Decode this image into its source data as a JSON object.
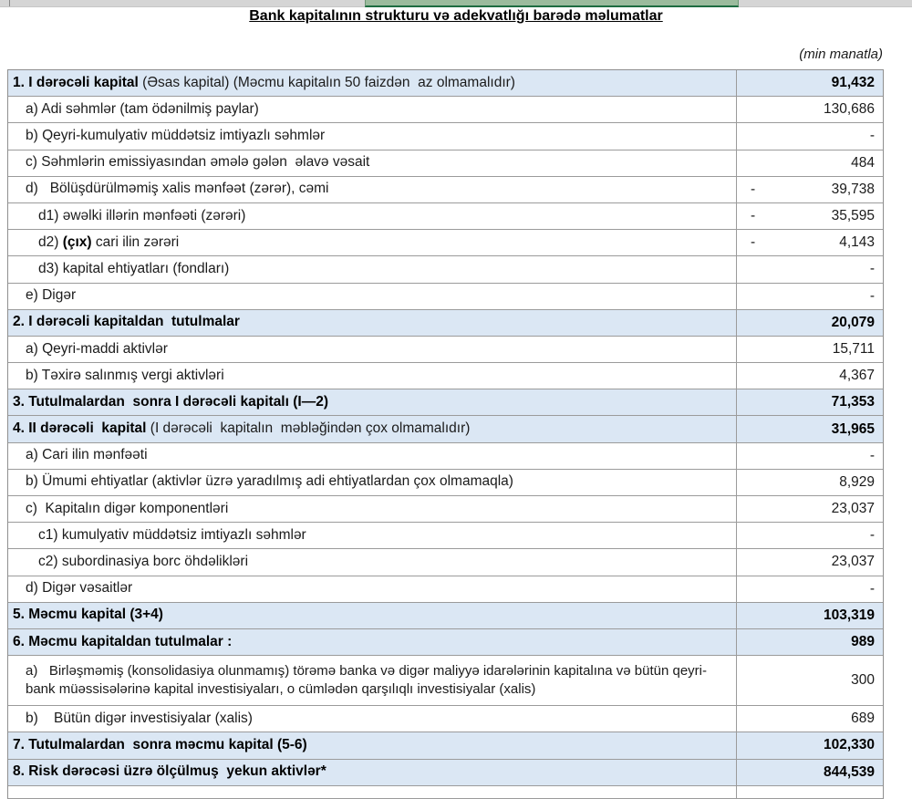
{
  "title": "Bank kapitalının strukturu və adekvatlığı barədə məlumatlar",
  "unit_note": "(min manatla)",
  "colors": {
    "section_row_bg": "#dbe7f4",
    "grid_border": "#9b9b9b",
    "excel_strip_bg": "#d5d5d5",
    "excel_selection_green_fill": "#9bbb9d",
    "excel_selection_green_border": "#1e6c41"
  },
  "table": {
    "rows": [
      {
        "level": "section",
        "bold": "1. I dərəcəli kapital",
        "post": " (Əsas kapital) (Məcmu kapitalın 50 faizdən  az olmamalıdır)",
        "value": "91,432"
      },
      {
        "level": "sub",
        "pre": "a) Adi səhmlər (tam ödənilmiş paylar)",
        "value": "130,686"
      },
      {
        "level": "sub",
        "pre": "b) Qeyri-kumulyativ müddətsiz imtiyazlı səhmlər",
        "value": "-"
      },
      {
        "level": "sub",
        "pre": "c) Səhmlərin emissiyasından əmələ gələn  əlavə vəsait",
        "value": "484"
      },
      {
        "level": "sub",
        "pre": "d)   Bölüşdürülməmiş xalis mənfəət (zərər), cəmi",
        "neg": "-",
        "value": "39,738"
      },
      {
        "level": "sub2",
        "pre": "d1) əwəlki illərin mənfəəti (zərəri)",
        "neg": "-",
        "value": "35,595"
      },
      {
        "level": "sub2",
        "pre": "d2) ",
        "bold": "(çıx)",
        "post": " cari ilin zərəri",
        "neg": "-",
        "value": "4,143"
      },
      {
        "level": "sub2",
        "pre": "d3) kapital ehtiyatları (fondları)",
        "value": "-"
      },
      {
        "level": "sub",
        "pre": "e) Digər",
        "value": "-"
      },
      {
        "level": "section",
        "bold": "2. I dərəcəli kapitaldan  tutulmalar",
        "value": "20,079"
      },
      {
        "level": "sub",
        "pre": "a) Qeyri-maddi aktivlər",
        "value": "15,711"
      },
      {
        "level": "sub",
        "pre": "b) Təxirə salınmış vergi aktivləri",
        "value": "4,367"
      },
      {
        "level": "section",
        "bold": "3. Tutulmalardan  sonra I dərəcəli kapitalı (I—2)",
        "value": "71,353"
      },
      {
        "level": "section",
        "bold": "4. II dərəcəli  kapital",
        "post": " (I dərəcəli  kapitalın  məbləğindən çox olmamalıdır)",
        "value": "31,965"
      },
      {
        "level": "sub",
        "pre": "a) Cari ilin mənfəəti",
        "value": "-"
      },
      {
        "level": "sub",
        "pre": "b) Ümumi ehtiyatlar (aktivlər üzrə yaradılmış adi ehtiyatlardan çox olmamaqla)",
        "value": "8,929"
      },
      {
        "level": "sub",
        "pre": "c)  Kapitalın digər komponentləri",
        "value": "23,037"
      },
      {
        "level": "sub2",
        "pre": "c1) kumulyativ müddətsiz imtiyazlı səhmlər",
        "value": "-"
      },
      {
        "level": "sub2",
        "pre": "c2) subordinasiya borc öhdəlikləri",
        "value": "23,037"
      },
      {
        "level": "sub",
        "pre": "d) Digər vəsaitlər",
        "value": "-"
      },
      {
        "level": "section",
        "bold": "5. Məcmu kapital (3+4)",
        "value": "103,319"
      },
      {
        "level": "section",
        "bold": "6. Məcmu kapitaldan tutulmalar :",
        "value": "989"
      },
      {
        "level": "sub",
        "tall": true,
        "pre": "a)   Birləşməmiş (konsolidasiya olunmamış) törəmə banka və digər maliyyə idarələrinin kapitalına və bütün qeyri-bank müəssisələrinə kapital investisiyaları, o cümlədən qarşılıqlı investisiyalar (xalis)",
        "value": "300"
      },
      {
        "level": "sub",
        "pre": "b)    Bütün digər investisiyalar (xalis)",
        "value": "689"
      },
      {
        "level": "section",
        "bold": "7. Tutulmalardan  sonra məcmu kapital (5-6)",
        "value": "102,330"
      },
      {
        "level": "section",
        "bold": "8. Risk dərəcəsi üzrə ölçülmuş  yekun aktivlər*",
        "value": "844,539"
      },
      {
        "level": "sub",
        "partial": true,
        "pre": "",
        "value": ""
      }
    ]
  }
}
